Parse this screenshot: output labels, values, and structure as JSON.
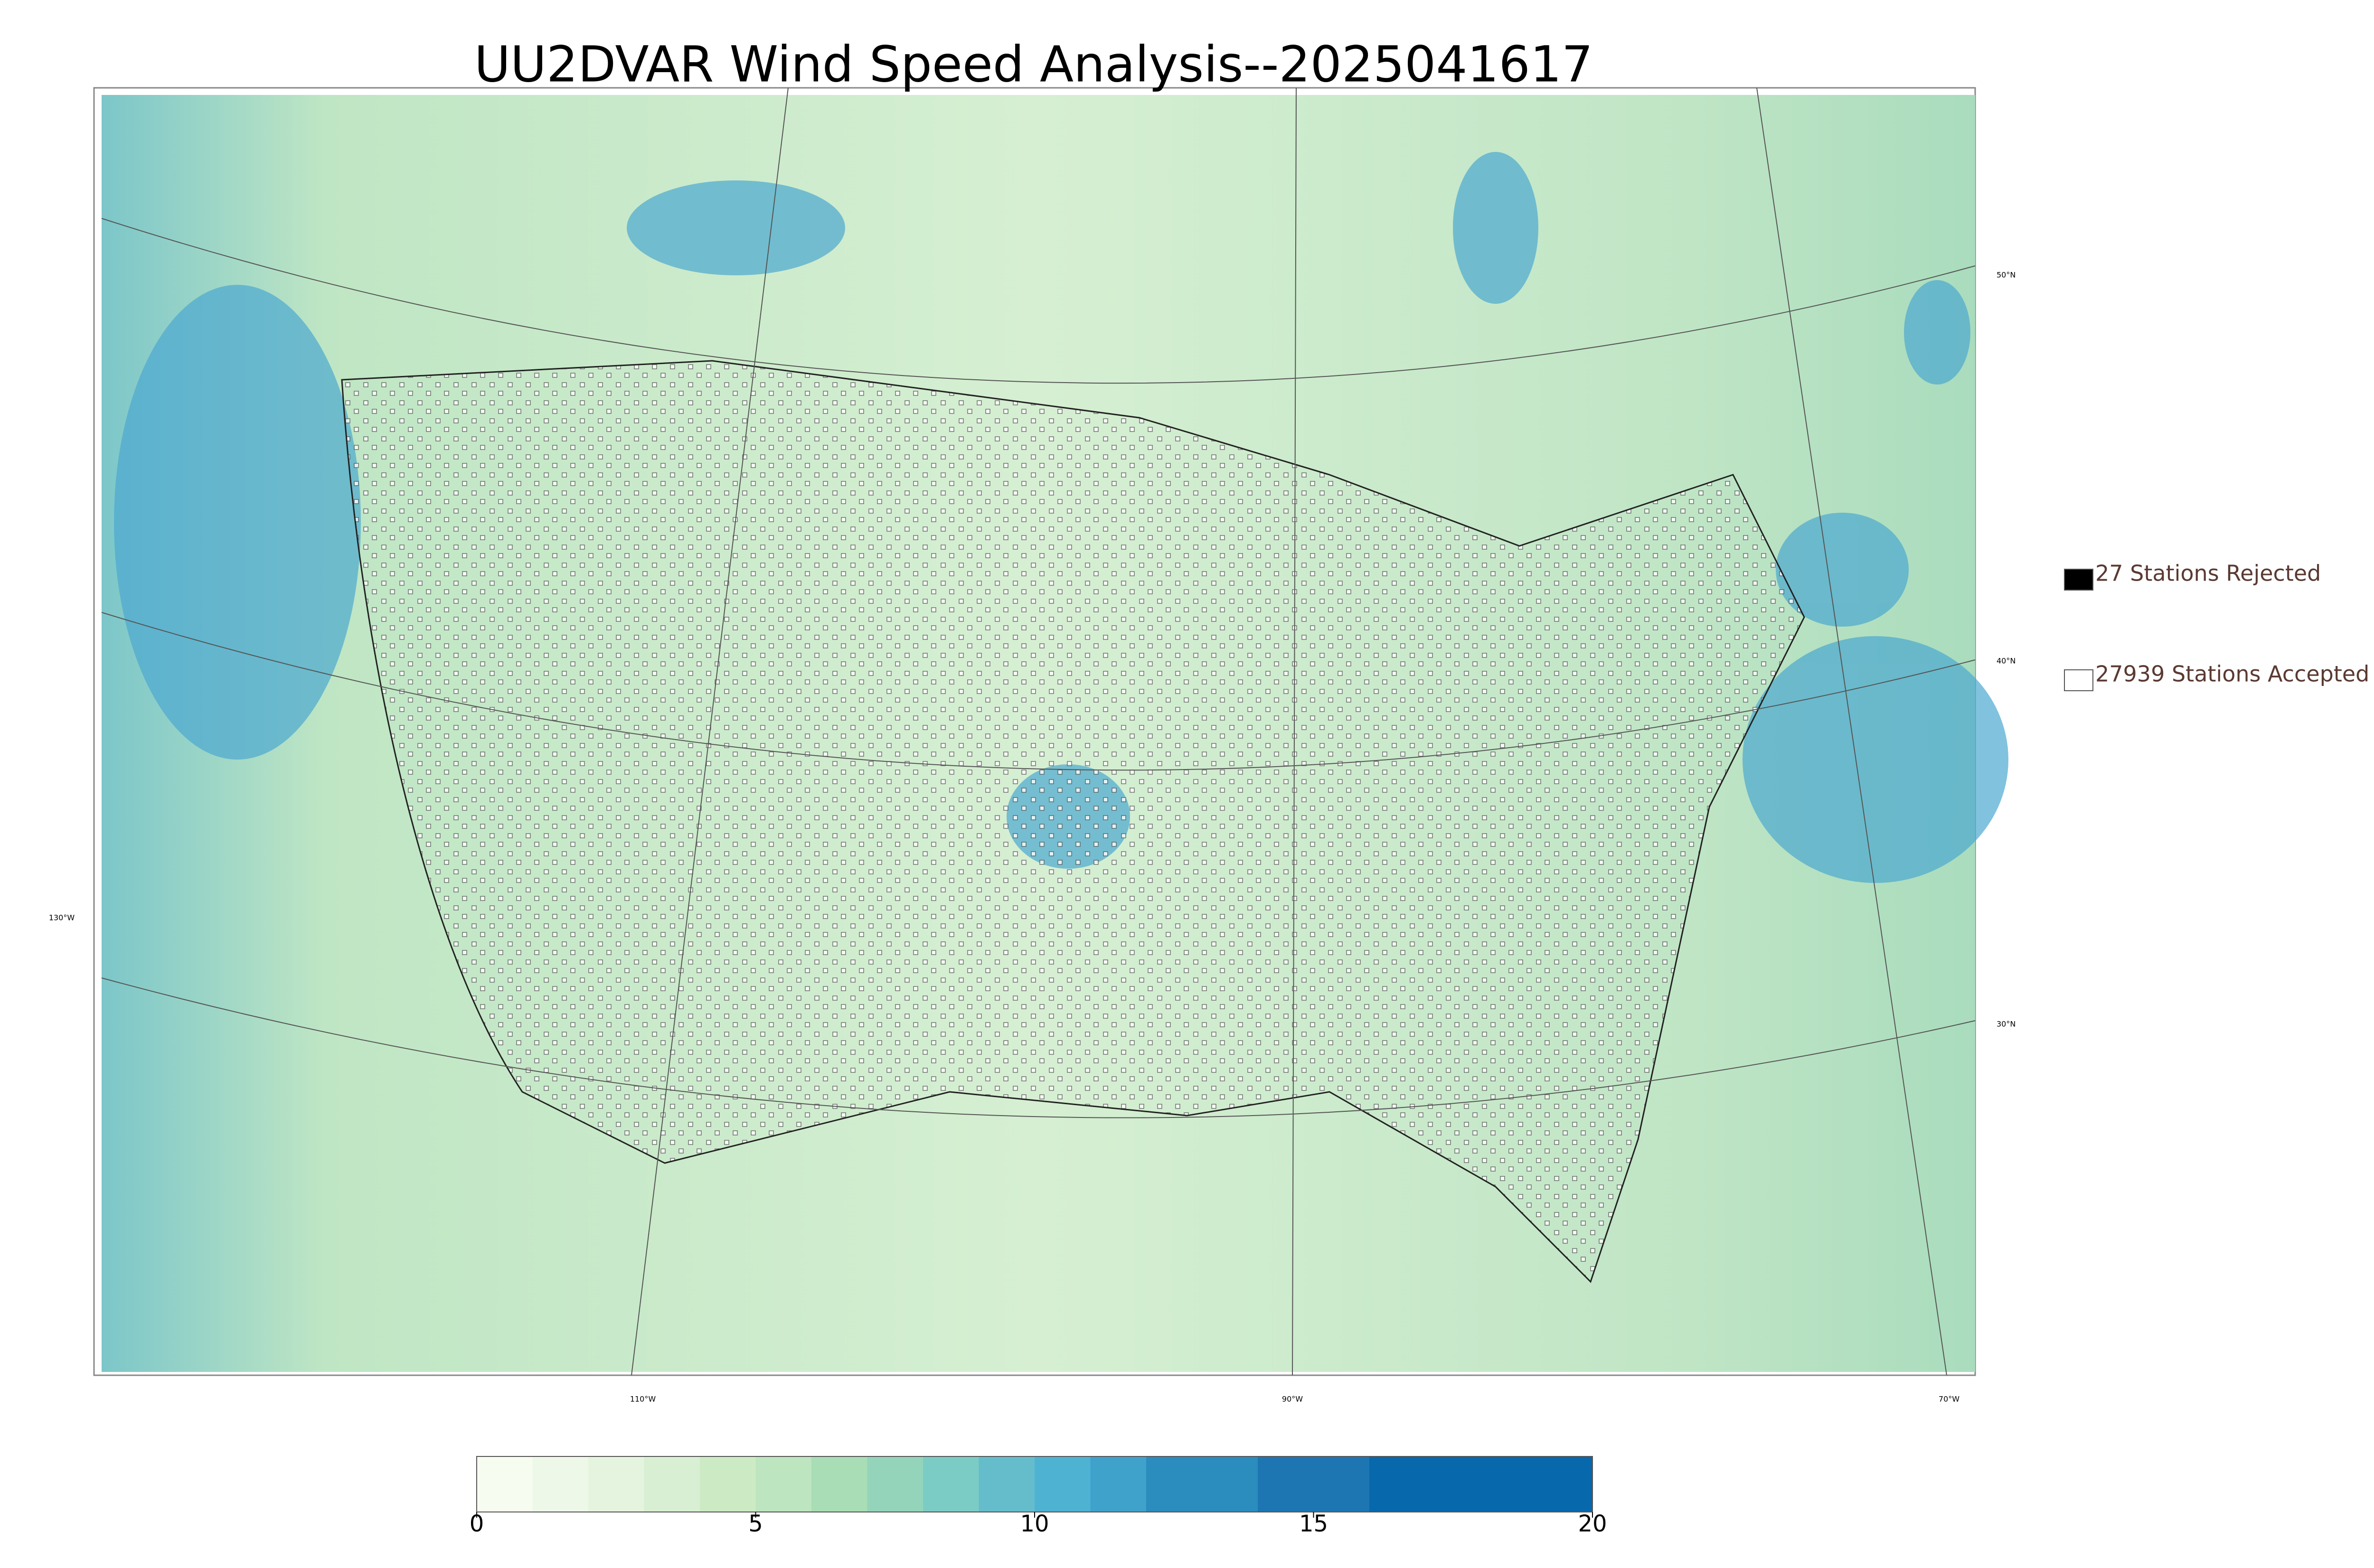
{
  "title": "UU2DVAR Wind Speed Analysis--2025041617",
  "legend": [
    {
      "label": "27 Stations Rejected",
      "color": "#000000"
    },
    {
      "label": "27939 Stations Accepted",
      "color": "#ffffff"
    }
  ],
  "graticule": {
    "longitudes": [
      "130°W",
      "110°W",
      "90°W",
      "70°W"
    ],
    "latitudes": [
      "50°N",
      "40°N",
      "30°N"
    ]
  },
  "colorbar": {
    "lim": [
      0,
      20
    ],
    "ticks": [
      0,
      5,
      10,
      15,
      20
    ],
    "colors": [
      "#f7fcf0",
      "#eef8e8",
      "#e4f4de",
      "#d8efd3",
      "#ccebc5",
      "#bde5bf",
      "#a8ddb5",
      "#94d4bb",
      "#7bccc4",
      "#65bdcc",
      "#4eb3d3",
      "#3fa2cb",
      "#2b8cbe",
      "#2b8cbe",
      "#1d76b2",
      "#1d76b2",
      "#0868ac",
      "#0868ac",
      "#0868ac",
      "#0868ac"
    ]
  }
}
